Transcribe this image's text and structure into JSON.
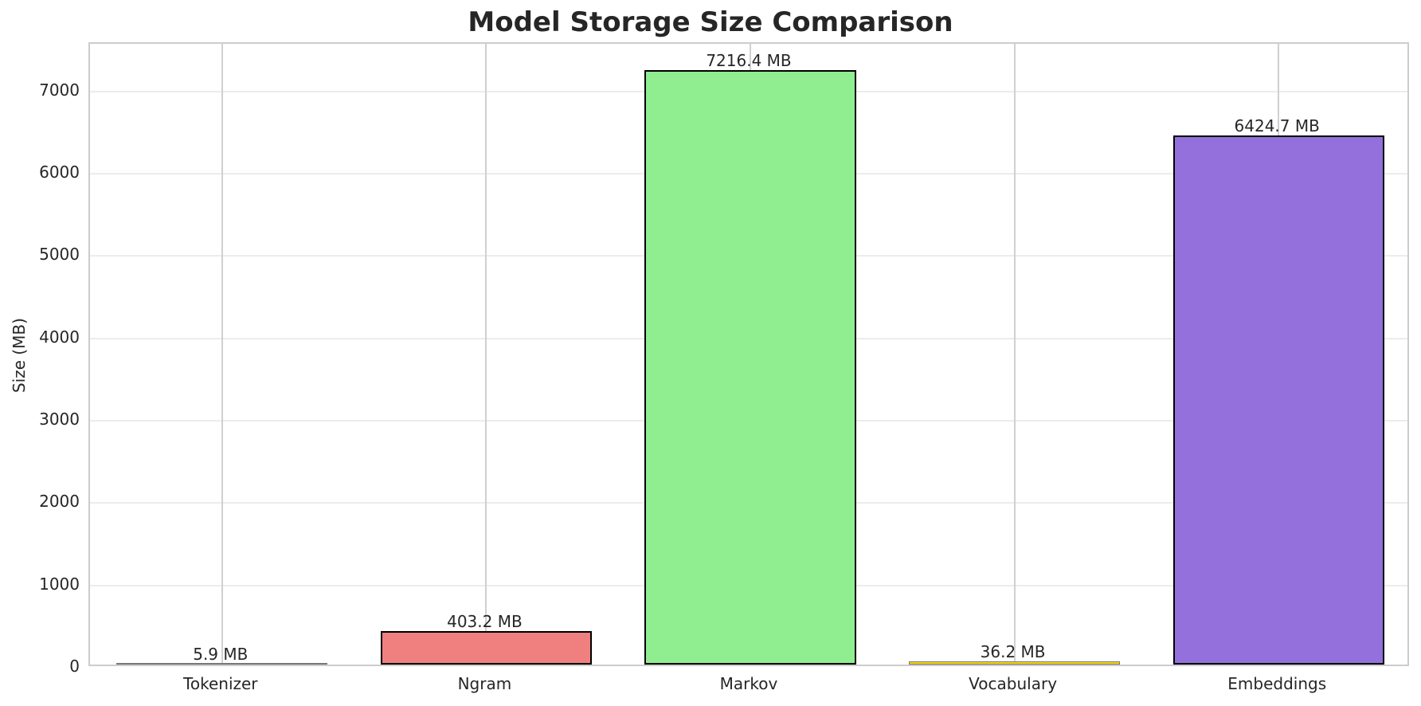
{
  "chart_data": {
    "type": "bar",
    "title": "Model Storage Size Comparison",
    "xlabel": "",
    "ylabel": "Size (MB)",
    "categories": [
      "Tokenizer",
      "Ngram",
      "Markov",
      "Vocabulary",
      "Embeddings"
    ],
    "values": [
      5.9,
      403.2,
      7216.4,
      36.2,
      6424.7
    ],
    "value_labels": [
      "5.9 MB",
      "403.2 MB",
      "7216.4 MB",
      "36.2 MB",
      "6424.7 MB"
    ],
    "colors": [
      "#87ceeb",
      "#f08080",
      "#90ee90",
      "#ffd700",
      "#9370db"
    ],
    "ylim": [
      0,
      7577
    ],
    "yticks": [
      0,
      1000,
      2000,
      3000,
      4000,
      5000,
      6000,
      7000
    ],
    "grid": true,
    "legend": null
  }
}
